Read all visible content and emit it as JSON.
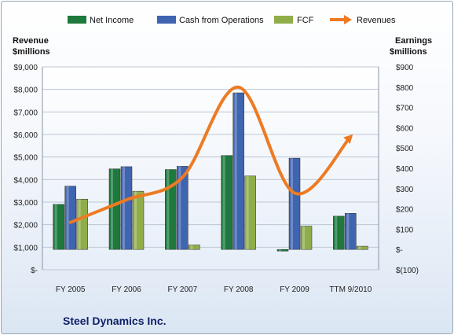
{
  "chart_data": {
    "type": "bar",
    "title": "Steel Dynamics Inc.",
    "categories": [
      "FY 2005",
      "FY 2006",
      "FY 2007",
      "FY 2008",
      "FY 2009",
      "TTM 9/2010"
    ],
    "left_axis": {
      "label_line1": "Revenue",
      "label_line2": "$millions",
      "ylim": [
        0,
        9000
      ],
      "ticks": [
        0,
        1000,
        2000,
        3000,
        4000,
        5000,
        6000,
        7000,
        8000,
        9000
      ],
      "tick_labels": [
        "$-",
        "$1,000",
        "$2,000",
        "$3,000",
        "$4,000",
        "$5,000",
        "$6,000",
        "$7,000",
        "$8,000",
        "$9,000"
      ]
    },
    "right_axis": {
      "label_line1": "Earnings",
      "label_line2": "$millions",
      "ylim": [
        -100,
        900
      ],
      "ticks": [
        -100,
        0,
        100,
        200,
        300,
        400,
        500,
        600,
        700,
        800,
        900
      ],
      "tick_labels": [
        "$(100)",
        "$-",
        "$100",
        "$200",
        "$300",
        "$400",
        "$500",
        "$600",
        "$700",
        "$800",
        "$900"
      ]
    },
    "series": [
      {
        "name": "Net Income",
        "type": "bar",
        "axis": "right",
        "color": "#1e7a3c",
        "values": [
          222,
          397,
          394,
          463,
          -8,
          164
        ]
      },
      {
        "name": "Cash from Operations",
        "type": "bar",
        "axis": "right",
        "color": "#3f64b0",
        "values": [
          312,
          408,
          410,
          772,
          450,
          178
        ]
      },
      {
        "name": "FCF",
        "type": "bar",
        "axis": "right",
        "color": "#8fae4a",
        "values": [
          248,
          287,
          22,
          362,
          115,
          16
        ]
      },
      {
        "name": "Revenues",
        "type": "line",
        "axis": "left",
        "color": "#ee7a22",
        "values": [
          2100,
          3100,
          4100,
          8100,
          3400,
          5900
        ]
      }
    ],
    "grid": true,
    "legend_position": "top"
  }
}
